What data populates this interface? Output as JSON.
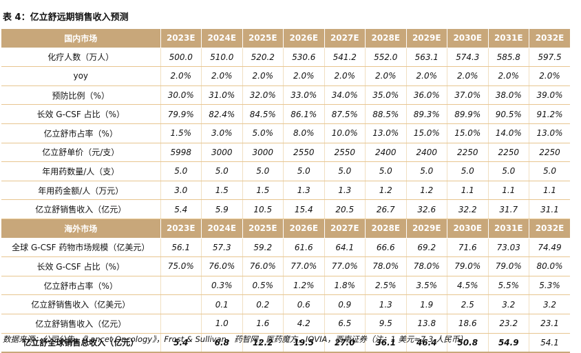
{
  "title": "表 4：亿立舒远期销售收入预测",
  "years": [
    "2023E",
    "2024E",
    "2025E",
    "2026E",
    "2027E",
    "2028E",
    "2029E",
    "2030E",
    "2031E",
    "2032E"
  ],
  "domestic": {
    "header": "国内市场",
    "rows": [
      {
        "label": "化疗人数（万人）",
        "values": [
          "500.0",
          "510.0",
          "520.2",
          "530.6",
          "541.2",
          "552.0",
          "563.1",
          "574.3",
          "585.8",
          "597.5"
        ]
      },
      {
        "label": "yoy",
        "values": [
          "2.0%",
          "2.0%",
          "2.0%",
          "2.0%",
          "2.0%",
          "2.0%",
          "2.0%",
          "2.0%",
          "2.0%",
          "2.0%"
        ]
      },
      {
        "label": "预防比例（%）",
        "values": [
          "30.0%",
          "31.0%",
          "32.0%",
          "33.0%",
          "34.0%",
          "35.0%",
          "36.0%",
          "37.0%",
          "38.0%",
          "39.0%"
        ]
      },
      {
        "label": "长效 G-CSF 占比（%）",
        "values": [
          "79.9%",
          "82.4%",
          "84.5%",
          "86.1%",
          "87.5%",
          "88.5%",
          "89.3%",
          "89.9%",
          "90.5%",
          "91.2%"
        ]
      },
      {
        "label": "亿立舒市占率（%）",
        "values": [
          "1.5%",
          "3.0%",
          "5.0%",
          "8.0%",
          "10.0%",
          "13.0%",
          "15.0%",
          "15.0%",
          "14.0%",
          "13.0%"
        ]
      },
      {
        "label": "亿立舒单价（元/支）",
        "values": [
          "5998",
          "3000",
          "3000",
          "2550",
          "2550",
          "2400",
          "2400",
          "2250",
          "2250",
          "2250"
        ]
      },
      {
        "label": "年用药数量/人（支）",
        "values": [
          "5.0",
          "5.0",
          "5.0",
          "5.0",
          "5.0",
          "5.0",
          "5.0",
          "5.0",
          "5.0",
          "5.0"
        ]
      },
      {
        "label": "年用药金额/人（万元）",
        "values": [
          "3.0",
          "1.5",
          "1.5",
          "1.3",
          "1.3",
          "1.2",
          "1.2",
          "1.1",
          "1.1",
          "1.1"
        ]
      },
      {
        "label": "亿立舒销售收入（亿元）",
        "values": [
          "5.4",
          "5.9",
          "10.5",
          "15.4",
          "20.5",
          "26.7",
          "32.6",
          "32.2",
          "31.7",
          "31.1"
        ]
      }
    ]
  },
  "overseas": {
    "header": "海外市场",
    "rows": [
      {
        "label": "全球 G-CSF 药物市场规模（亿美元）",
        "values": [
          "56.1",
          "57.3",
          "59.2",
          "61.6",
          "64.1",
          "66.6",
          "69.2",
          "71.6",
          "73.03",
          "74.49"
        ]
      },
      {
        "label": "长效 G-CSF 占比（%）",
        "values": [
          "75.0%",
          "76.0%",
          "76.0%",
          "77.0%",
          "77.0%",
          "78.0%",
          "78.0%",
          "79.0%",
          "79.0%",
          "80.0%"
        ]
      },
      {
        "label": "亿立舒市占率（%）",
        "values": [
          "",
          "0.3%",
          "0.5%",
          "1.2%",
          "1.8%",
          "2.5%",
          "3.5%",
          "4.5%",
          "5.5%",
          "5.3%"
        ]
      },
      {
        "label": "亿立舒销售收入（亿美元）",
        "values": [
          "",
          "0.1",
          "0.2",
          "0.6",
          "0.9",
          "1.3",
          "1.9",
          "2.5",
          "3.2",
          "3.2"
        ]
      },
      {
        "label": "亿立舒销售收入（亿元）",
        "values": [
          "",
          "1.0",
          "1.6",
          "4.2",
          "6.5",
          "9.5",
          "13.8",
          "18.6",
          "23.2",
          "23.1"
        ]
      }
    ]
  },
  "total": {
    "label": "亿立舒全球销售总收入（亿元）",
    "values": [
      "5.4",
      "6.8",
      "12.2",
      "19.5",
      "27.0",
      "36.1",
      "46.4",
      "50.8",
      "54.9",
      "54.1"
    ]
  },
  "source": "数据来源：公司公告，《Lancet Oncology》，Frost & Sullivan，药智网，医药魔方，IQVIA，西南证券（注：1 美元≈7.3 人民币）"
}
